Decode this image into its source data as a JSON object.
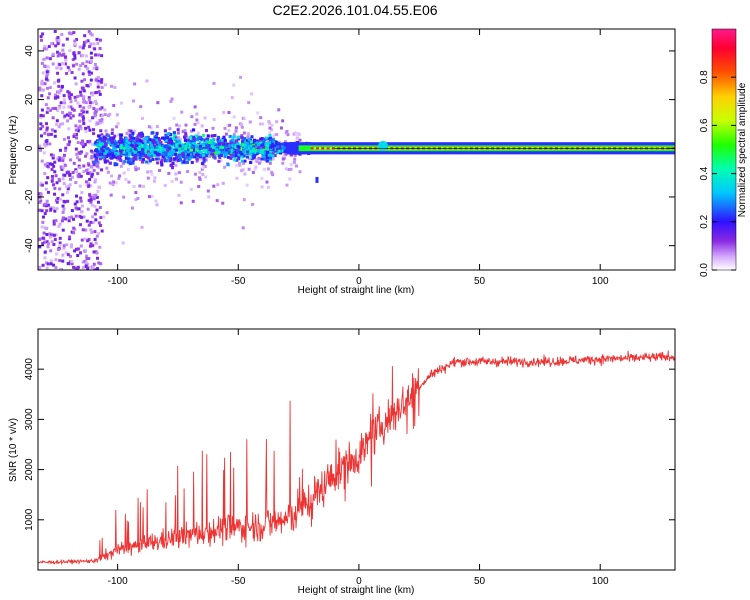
{
  "figure_title": "C2E2.2026.101.04.55.E06",
  "chart_data": [
    {
      "type": "heatmap",
      "title": "",
      "xlabel": "Height of straight line (km)",
      "ylabel": "Frequency (Hz)",
      "xlim": [
        -133,
        131
      ],
      "ylim": [
        -50,
        49
      ],
      "xticks": [
        -100,
        -50,
        0,
        50,
        100
      ],
      "yticks": [
        -40,
        -20,
        0,
        20,
        40
      ],
      "description_values": {
        "noise_region_x": [
          -133,
          -110
        ],
        "broadband_region_x": [
          -110,
          -25
        ],
        "narrow_tone_region_x": [
          -25,
          131
        ],
        "tone_frequency_hz": 0
      },
      "colorbar": {
        "label": "Normalized spectral amplitude",
        "range": [
          0.0,
          1.0
        ],
        "ticks": [
          0.0,
          0.2,
          0.4,
          0.6,
          0.8
        ]
      }
    },
    {
      "type": "line",
      "title": "",
      "xlabel": "Height of straight line (km)",
      "ylabel": "SNR (10 * v/v)",
      "xlim": [
        -133,
        131
      ],
      "ylim": [
        0,
        4800
      ],
      "xticks": [
        -100,
        -50,
        0,
        50,
        100
      ],
      "yticks": [
        1000,
        2000,
        3000,
        4000
      ],
      "color": "#ee3333",
      "trend": {
        "x": [
          -133,
          -110,
          -100,
          -80,
          -60,
          -40,
          -30,
          -20,
          -10,
          0,
          10,
          20,
          30,
          40,
          60,
          80,
          100,
          131
        ],
        "y": [
          150,
          180,
          400,
          600,
          800,
          900,
          1000,
          1400,
          1900,
          2300,
          2900,
          3400,
          3900,
          4150,
          4150,
          4150,
          4200,
          4250
        ]
      }
    }
  ]
}
